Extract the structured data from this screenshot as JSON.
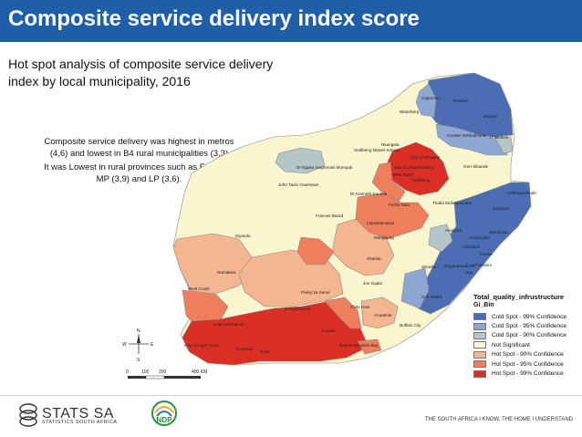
{
  "header": {
    "title": "Composite service delivery index score"
  },
  "subtitle": "Hot spot analysis of composite service delivery index by local municipality, 2016",
  "notes": [
    "Composite service delivery was highest in metros (4,6) and lowest in B4 rural municipalities (3,3)",
    "It was Lowest in rural provinces such as EC (3,8), MP (3,9) and LP (3,6)."
  ],
  "legend": {
    "title": "Total_quality_infrustructure",
    "subtitle": "Gi_Bin",
    "items": [
      {
        "label": "Cold Spot - 99% Confidence",
        "color": "#4a6db3"
      },
      {
        "label": "Cold Spot - 95% Confidence",
        "color": "#8ea6d2"
      },
      {
        "label": "Cold Spot - 90% Confidence",
        "color": "#b4c6c8"
      },
      {
        "label": "Not Significant",
        "color": "#f9f6cf"
      },
      {
        "label": "Hot Spot - 90% Confidence",
        "color": "#f4b591"
      },
      {
        "label": "Hot Spot - 95% Confidence",
        "color": "#ee7e5c"
      },
      {
        "label": "Hot Spot - 99% Confidence",
        "color": "#db2f26"
      }
    ]
  },
  "map_labels": {
    "capricorn": "Capricorn",
    "vhembe": "Vhembe",
    "waterberg": "Waterberg",
    "mopani": "Mopani",
    "greater_sekhukhune": "Greater Sekhukhune",
    "ehlanzeni": "Ehlanzeni",
    "sedibeng_moses": "Sedibeng Moses Kotane",
    "nkangala": "Nkangala",
    "ngaka_modiri_molema": "Dr Ngaka Segomotsi Mompati",
    "city_tshwane": "City of Tshwane",
    "gert_sibande": "Gert Sibande",
    "city_joburg": "City of Johannesburg",
    "west_rand": "West Rand",
    "sedibeng": "Sedibeng",
    "john_taolo": "John Taolo Gaetsewe",
    "dr_kenneth": "Dr Kenneth Kaunda",
    "thabo_mofutsanyane": "Thabo Mofutsanyane",
    "umkhanyakude": "Umkhanyakude",
    "fezile_dabi": "Fezile Dabi",
    "zululand": "Zululand",
    "frances_baard": "Frances Baard",
    "lejweleputswa": "Lejweleputswa",
    "amajuba": "Amajuba",
    "uthungulu": "Uthungulu",
    "siyanda": "Siyanda",
    "mangaung": "Mangaung",
    "umzinyathi": "Umzinyathi",
    "uthukela": "Uthukela",
    "ilembe": "Ilembe",
    "pixley_ka_seme": "Pixley ka Seme",
    "xhariep": "Xhariep",
    "umgungundlovu": "Umgungundlovu",
    "ethekwini": "eThekwini",
    "namakwa": "Namakwa",
    "sisonke": "Sisonke",
    "ugu": "Ugu",
    "joe_gqabi": "Joe Gqabi",
    "west_coast": "West Coast",
    "or_tambo": "O.R.Tambo",
    "central_karoo": "Central Karoo",
    "chris_hani": "Chris Hani",
    "amathole": "Amathole",
    "buffalo_city": "Buffalo City",
    "cape_winelands": "Cape Winelands",
    "cacadu": "Cacadu",
    "city_cape_town": "City of Cape Town",
    "overberg": "Overberg",
    "eden": "Eden",
    "nelson_mandela": "Nelson Mandela Bay"
  },
  "compass": {
    "n": "N",
    "s": "S",
    "e": "E",
    "w": "W"
  },
  "scale": {
    "a": "0",
    "b": "100",
    "c": "200",
    "d": "400 KM"
  },
  "footer": {
    "logo_text": "STATS SA",
    "logo_sub": "STATISTICS SOUTH AFRICA",
    "ndp": "NDP",
    "tagline": "THE SOUTH AFRICA I KNOW, THE HOME I UNDERSTAND"
  }
}
